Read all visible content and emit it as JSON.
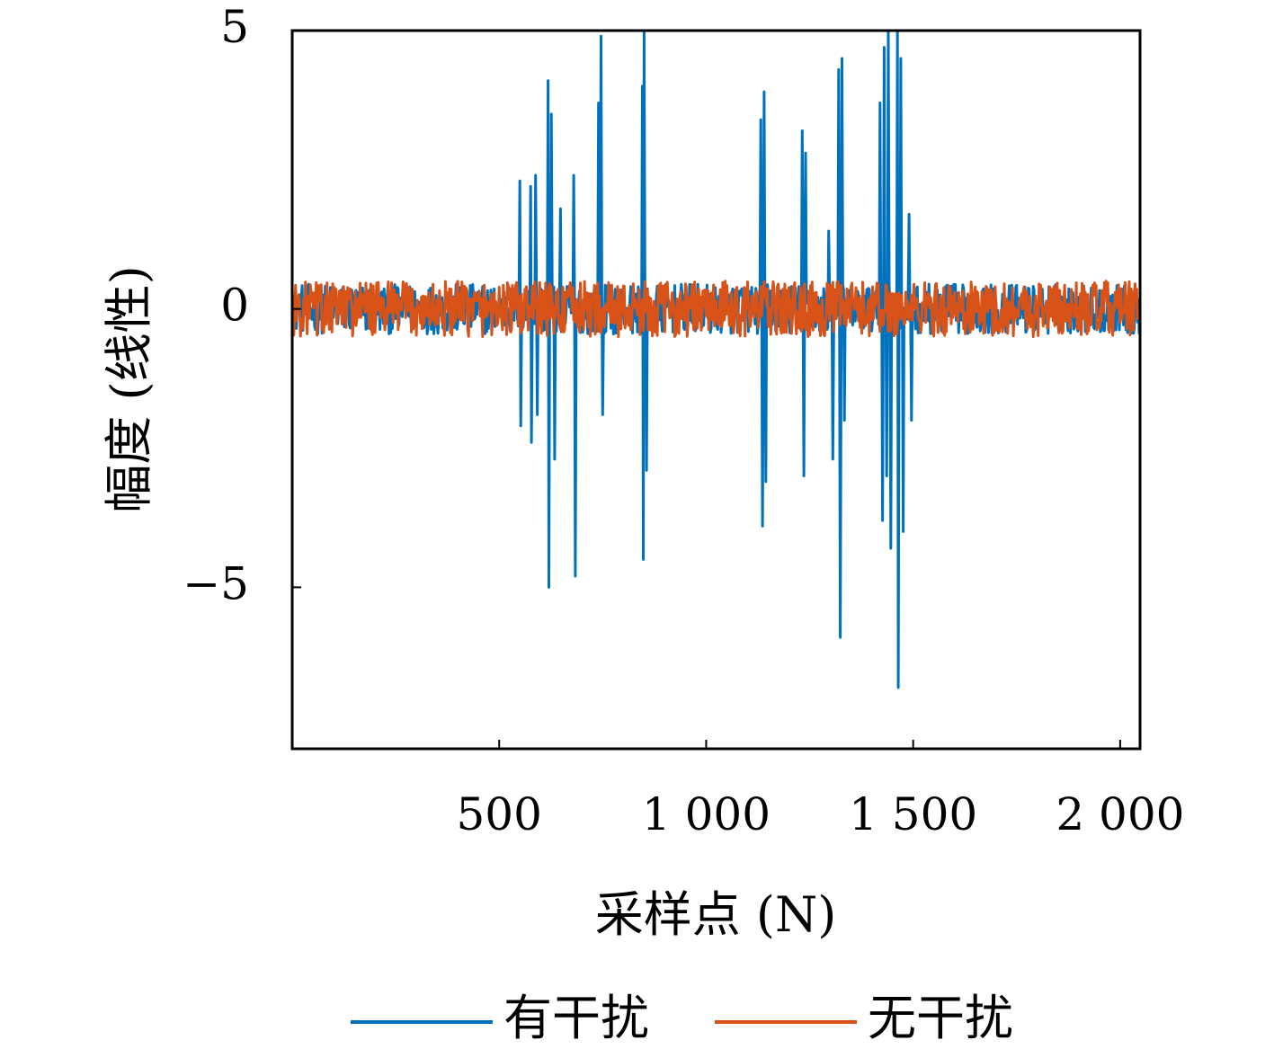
{
  "chart_data": {
    "type": "line",
    "xlabel": "采样点 (N)",
    "ylabel": "幅度 (线性)",
    "xlim": [
      0,
      2048
    ],
    "ylim": [
      -7.9,
      5
    ],
    "x_ticks": [
      500,
      1000,
      1500,
      2000
    ],
    "x_tick_labels": [
      "500",
      "1 000",
      "1 500",
      "2 000"
    ],
    "y_ticks": [
      5,
      0,
      -5
    ],
    "y_tick_labels": [
      "5",
      "0",
      "−5"
    ],
    "legend_position": "bottom",
    "series": [
      {
        "name": "有干扰",
        "color": "#0072BD",
        "noise_amplitude": 0.45,
        "bursts": [
          {
            "x": 550,
            "y": 2.3
          },
          {
            "x": 552,
            "y": -2.1
          },
          {
            "x": 575,
            "y": 2.2
          },
          {
            "x": 578,
            "y": -2.4
          },
          {
            "x": 588,
            "y": 2.4
          },
          {
            "x": 592,
            "y": -1.9
          },
          {
            "x": 618,
            "y": 4.1
          },
          {
            "x": 620,
            "y": -5.0
          },
          {
            "x": 625,
            "y": 3.5
          },
          {
            "x": 633,
            "y": -2.7
          },
          {
            "x": 648,
            "y": 1.8
          },
          {
            "x": 680,
            "y": 2.4
          },
          {
            "x": 684,
            "y": -4.8
          },
          {
            "x": 740,
            "y": 3.7
          },
          {
            "x": 745,
            "y": 4.9
          },
          {
            "x": 750,
            "y": -1.9
          },
          {
            "x": 845,
            "y": 4.0
          },
          {
            "x": 848,
            "y": -4.5
          },
          {
            "x": 850,
            "y": 5.0
          },
          {
            "x": 855,
            "y": -2.9
          },
          {
            "x": 1132,
            "y": 3.4
          },
          {
            "x": 1136,
            "y": -3.9
          },
          {
            "x": 1140,
            "y": 3.9
          },
          {
            "x": 1144,
            "y": -3.1
          },
          {
            "x": 1232,
            "y": 3.2
          },
          {
            "x": 1236,
            "y": -3.0
          },
          {
            "x": 1240,
            "y": 2.8
          },
          {
            "x": 1296,
            "y": 1.4
          },
          {
            "x": 1305,
            "y": -2.7
          },
          {
            "x": 1320,
            "y": 4.3
          },
          {
            "x": 1323,
            "y": -5.9
          },
          {
            "x": 1327,
            "y": 4.5
          },
          {
            "x": 1333,
            "y": -2.0
          },
          {
            "x": 1420,
            "y": 3.7
          },
          {
            "x": 1425,
            "y": -3.8
          },
          {
            "x": 1430,
            "y": 4.7
          },
          {
            "x": 1436,
            "y": -3.0
          },
          {
            "x": 1440,
            "y": 5.0
          },
          {
            "x": 1445,
            "y": -4.3
          },
          {
            "x": 1462,
            "y": 5.0
          },
          {
            "x": 1464,
            "y": -6.8
          },
          {
            "x": 1470,
            "y": 4.5
          },
          {
            "x": 1475,
            "y": -4.0
          },
          {
            "x": 1490,
            "y": 1.7
          },
          {
            "x": 1495,
            "y": -2.0
          }
        ]
      },
      {
        "name": "无干扰",
        "color": "#D95319",
        "noise_amplitude": 0.5
      }
    ]
  }
}
